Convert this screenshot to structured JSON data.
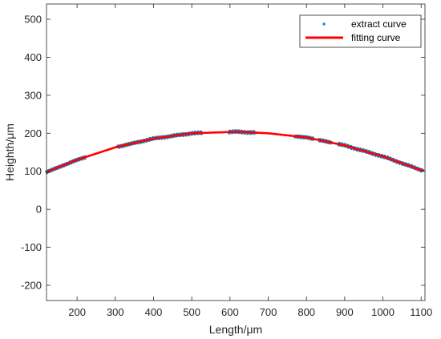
{
  "chart_data": {
    "type": "scatter",
    "title": "",
    "xlabel": "Length/μm",
    "ylabel": "Heighth/μm",
    "xlim": [
      120,
      1110
    ],
    "ylim": [
      -240,
      540
    ],
    "xticks": [
      200,
      300,
      400,
      500,
      600,
      700,
      800,
      900,
      1000,
      1100
    ],
    "yticks": [
      -200,
      -100,
      0,
      100,
      200,
      300,
      400,
      500
    ],
    "grid": false,
    "legend_position": "top-right",
    "series": [
      {
        "name": "extract curve",
        "style": "points",
        "color": "#1f77b4",
        "segments": [
          {
            "x_range": [
              120,
              222
            ]
          },
          {
            "x_range": [
              305,
              527
            ]
          },
          {
            "x_range": [
              598,
              668
            ]
          },
          {
            "x_range": [
              770,
              818
            ]
          },
          {
            "x_range": [
              832,
              866
            ]
          },
          {
            "x_range": [
              883,
              1106
            ]
          }
        ]
      },
      {
        "name": "fitting curve",
        "style": "line",
        "color": "#ff0000",
        "x": [
          120,
          200,
          300,
          400,
          500,
          620,
          700,
          800,
          900,
          1000,
          1106
        ],
        "y": [
          98,
          130,
          163,
          186,
          200,
          204,
          200,
          189,
          168,
          139,
          101
        ]
      }
    ]
  }
}
